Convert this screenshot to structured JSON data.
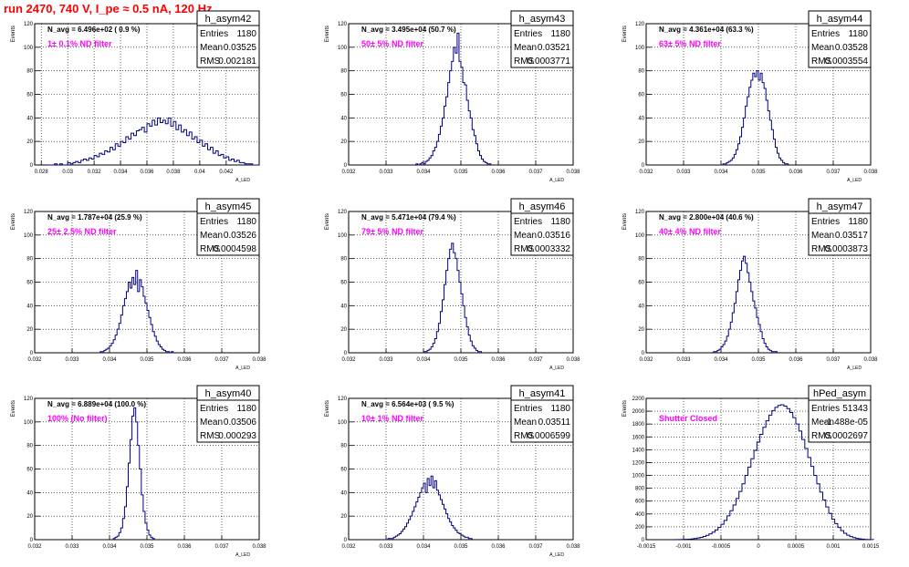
{
  "page": {
    "run_title": "run 2470,   740 V, I_pe ≈ 0.5 nA, 120 Hz",
    "colors": {
      "title": "#ff0000",
      "histogram": "#000080",
      "annotation": "#ff00ff",
      "grid": "#000000"
    }
  },
  "stats_labels": {
    "entries": "Entries",
    "mean": "Mean",
    "rms": "RMS"
  },
  "chart_data": [
    {
      "type": "histogram",
      "name": "h_asym42",
      "entries": "1180",
      "mean": "0.03525",
      "rms": "0.002181",
      "navg_text": "N_avg = 6.496e+02 ( 0.9 %)",
      "filter_text": "1± 0.1% ND filter",
      "ylabel": "Events",
      "xlabel": "A_LED",
      "xlim": [
        0.0275,
        0.0445
      ],
      "ylim": [
        0,
        120
      ],
      "xticks": [
        0.028,
        0.03,
        0.032,
        0.034,
        0.036,
        0.038,
        0.04,
        0.042
      ],
      "xtick_labels": [
        "0.028",
        "0.03",
        "0.032",
        "0.034",
        "0.036",
        "0.038",
        "0.04",
        "0.042"
      ],
      "yticks": [
        0,
        20,
        40,
        60,
        80,
        100,
        120
      ],
      "ytick_labels": [
        "0",
        "20",
        "40",
        "60",
        "80",
        "100",
        "120"
      ],
      "bins": {
        "start": 0.0284,
        "width": 0.0002,
        "values": [
          0,
          0,
          0,
          1,
          0,
          1,
          0,
          0,
          2,
          1,
          2,
          3,
          2,
          4,
          5,
          4,
          6,
          5,
          8,
          7,
          10,
          9,
          12,
          11,
          15,
          13,
          18,
          16,
          20,
          19,
          24,
          22,
          27,
          25,
          29,
          30,
          32,
          28,
          35,
          33,
          38,
          34,
          40,
          36,
          38,
          35,
          40,
          33,
          37,
          30,
          34,
          28,
          30,
          25,
          28,
          22,
          24,
          19,
          21,
          16,
          18,
          13,
          15,
          10,
          12,
          8,
          9,
          6,
          7,
          4,
          5,
          3,
          4,
          2,
          2,
          1,
          1,
          1,
          0,
          0
        ]
      }
    },
    {
      "type": "histogram",
      "name": "h_asym43",
      "entries": "1180",
      "mean": "0.03521",
      "rms": "0.0003771",
      "navg_text": "N_avg = 3.495e+04 (50.7 %)",
      "filter_text": "50± 5% ND filter",
      "ylabel": "Events",
      "xlabel": "A_LED",
      "xlim": [
        0.032,
        0.038
      ],
      "ylim": [
        0,
        120
      ],
      "xticks": [
        0.032,
        0.033,
        0.034,
        0.035,
        0.036,
        0.037,
        0.038
      ],
      "xtick_labels": [
        "0.032",
        "0.033",
        "0.034",
        "0.035",
        "0.036",
        "0.037",
        "0.038"
      ],
      "yticks": [
        0,
        20,
        40,
        60,
        80,
        100,
        120
      ],
      "ytick_labels": [
        "0",
        "20",
        "40",
        "60",
        "80",
        "100",
        "120"
      ],
      "bins": {
        "start": 0.0338,
        "width": 5e-05,
        "values": [
          1,
          0,
          1,
          2,
          1,
          3,
          4,
          6,
          8,
          12,
          15,
          20,
          26,
          33,
          40,
          50,
          58,
          70,
          80,
          88,
          100,
          95,
          112,
          88,
          83,
          70,
          68,
          55,
          46,
          40,
          30,
          25,
          18,
          12,
          8,
          5,
          3,
          2,
          1,
          1
        ]
      }
    },
    {
      "type": "histogram",
      "name": "h_asym44",
      "entries": "1180",
      "mean": "0.03528",
      "rms": "0.0003554",
      "navg_text": "N_avg = 4.361e+04 (63.3 %)",
      "filter_text": "63± 5% ND filter",
      "ylabel": "Events",
      "xlabel": "A_LED",
      "xlim": [
        0.032,
        0.038
      ],
      "ylim": [
        0,
        120
      ],
      "xticks": [
        0.032,
        0.033,
        0.034,
        0.035,
        0.036,
        0.037,
        0.038
      ],
      "xtick_labels": [
        "0.032",
        "0.033",
        "0.034",
        "0.035",
        "0.036",
        "0.037",
        "0.038"
      ],
      "yticks": [
        0,
        20,
        40,
        60,
        80,
        100,
        120
      ],
      "ytick_labels": [
        "0",
        "20",
        "40",
        "60",
        "80",
        "100",
        "120"
      ],
      "bins": {
        "start": 0.034,
        "width": 5e-05,
        "values": [
          0,
          1,
          1,
          2,
          3,
          4,
          6,
          9,
          13,
          18,
          24,
          32,
          40,
          50,
          58,
          66,
          72,
          78,
          75,
          80,
          72,
          78,
          70,
          65,
          55,
          46,
          38,
          30,
          22,
          15,
          10,
          6,
          4,
          2,
          1,
          1
        ]
      }
    },
    {
      "type": "histogram",
      "name": "h_asym45",
      "entries": "1180",
      "mean": "0.03526",
      "rms": "0.0004598",
      "navg_text": "N_avg = 1.787e+04 (25.9 %)",
      "filter_text": "25± 2.5% ND filter",
      "ylabel": "Events",
      "xlabel": "A_LED",
      "xlim": [
        0.032,
        0.038
      ],
      "ylim": [
        0,
        120
      ],
      "xticks": [
        0.032,
        0.033,
        0.034,
        0.035,
        0.036,
        0.037,
        0.038
      ],
      "xtick_labels": [
        "0.032",
        "0.033",
        "0.034",
        "0.035",
        "0.036",
        "0.037",
        "0.038"
      ],
      "yticks": [
        0,
        20,
        40,
        60,
        80,
        100,
        120
      ],
      "ytick_labels": [
        "0",
        "20",
        "40",
        "60",
        "80",
        "100",
        "120"
      ],
      "bins": {
        "start": 0.0337,
        "width": 5e-05,
        "values": [
          0,
          1,
          1,
          2,
          3,
          4,
          6,
          8,
          11,
          15,
          20,
          25,
          32,
          40,
          46,
          52,
          60,
          55,
          64,
          58,
          70,
          52,
          62,
          56,
          48,
          42,
          36,
          30,
          24,
          18,
          14,
          10,
          7,
          5,
          3,
          2,
          1,
          1,
          0,
          1
        ]
      }
    },
    {
      "type": "histogram",
      "name": "h_asym46",
      "entries": "1180",
      "mean": "0.03516",
      "rms": "0.0003332",
      "navg_text": "N_avg = 5.471e+04 (79.4 %)",
      "filter_text": "79± 5% ND filter",
      "ylabel": "Events",
      "xlabel": "A_LED",
      "xlim": [
        0.032,
        0.038
      ],
      "ylim": [
        0,
        120
      ],
      "xticks": [
        0.032,
        0.033,
        0.034,
        0.035,
        0.036,
        0.037,
        0.038
      ],
      "xtick_labels": [
        "0.032",
        "0.033",
        "0.034",
        "0.035",
        "0.036",
        "0.037",
        "0.038"
      ],
      "yticks": [
        0,
        20,
        40,
        60,
        80,
        100,
        120
      ],
      "ytick_labels": [
        "0",
        "20",
        "40",
        "60",
        "80",
        "100",
        "120"
      ],
      "bins": {
        "start": 0.034,
        "width": 5e-05,
        "values": [
          1,
          1,
          2,
          3,
          5,
          8,
          12,
          18,
          25,
          35,
          45,
          58,
          70,
          80,
          88,
          93,
          85,
          80,
          70,
          60,
          50,
          40,
          30,
          22,
          15,
          10,
          6,
          4,
          2,
          1,
          1
        ]
      }
    },
    {
      "type": "histogram",
      "name": "h_asym47",
      "entries": "1180",
      "mean": "0.03517",
      "rms": "0.0003873",
      "navg_text": "N_avg = 2.800e+04 (40.6 %)",
      "filter_text": "40± 4% ND filter",
      "ylabel": "Events",
      "xlabel": "A_LED",
      "xlim": [
        0.032,
        0.038
      ],
      "ylim": [
        0,
        120
      ],
      "xticks": [
        0.032,
        0.033,
        0.034,
        0.035,
        0.036,
        0.037,
        0.038
      ],
      "xtick_labels": [
        "0.032",
        "0.033",
        "0.034",
        "0.035",
        "0.036",
        "0.037",
        "0.038"
      ],
      "yticks": [
        0,
        20,
        40,
        60,
        80,
        100,
        120
      ],
      "ytick_labels": [
        "0",
        "20",
        "40",
        "60",
        "80",
        "100",
        "120"
      ],
      "bins": {
        "start": 0.0338,
        "width": 5e-05,
        "values": [
          1,
          1,
          2,
          3,
          5,
          7,
          10,
          14,
          20,
          26,
          34,
          42,
          52,
          62,
          70,
          78,
          82,
          76,
          68,
          60,
          52,
          44,
          38,
          30,
          24,
          18,
          12,
          8,
          5,
          3,
          2,
          1,
          1,
          1
        ]
      }
    },
    {
      "type": "histogram",
      "name": "h_asym40",
      "entries": "1180",
      "mean": "0.03506",
      "rms": "0.000293",
      "navg_text": "N_avg = 6.889e+04 (100.0 %)",
      "filter_text": "100% (No filter)",
      "ylabel": "Events",
      "xlabel": "A_LED",
      "xlim": [
        0.032,
        0.038
      ],
      "ylim": [
        0,
        120
      ],
      "xticks": [
        0.032,
        0.033,
        0.034,
        0.035,
        0.036,
        0.037,
        0.038
      ],
      "xtick_labels": [
        "0.032",
        "0.033",
        "0.034",
        "0.035",
        "0.036",
        "0.037",
        "0.038"
      ],
      "yticks": [
        0,
        20,
        40,
        60,
        80,
        100,
        120
      ],
      "ytick_labels": [
        "0",
        "20",
        "40",
        "60",
        "80",
        "100",
        "120"
      ],
      "bins": {
        "start": 0.0341,
        "width": 5e-05,
        "values": [
          1,
          2,
          3,
          6,
          10,
          18,
          28,
          45,
          65,
          85,
          105,
          112,
          100,
          80,
          60,
          38,
          24,
          14,
          8,
          4,
          2,
          1
        ]
      }
    },
    {
      "type": "histogram",
      "name": "h_asym41",
      "entries": "1180",
      "mean": "0.03511",
      "rms": "0.0006599",
      "navg_text": "N_avg = 6.564e+03 ( 9.5 %)",
      "filter_text": "10± 1% ND filter",
      "ylabel": "Events",
      "xlabel": "A_LED",
      "xlim": [
        0.032,
        0.038
      ],
      "ylim": [
        0,
        120
      ],
      "xticks": [
        0.032,
        0.033,
        0.034,
        0.035,
        0.036,
        0.037,
        0.038
      ],
      "xtick_labels": [
        "0.032",
        "0.033",
        "0.034",
        "0.035",
        "0.036",
        "0.037",
        "0.038"
      ],
      "yticks": [
        0,
        20,
        40,
        60,
        80,
        100,
        120
      ],
      "ytick_labels": [
        "0",
        "20",
        "40",
        "60",
        "80",
        "100",
        "120"
      ],
      "bins": {
        "start": 0.033,
        "width": 5e-05,
        "values": [
          0,
          1,
          1,
          1,
          2,
          3,
          4,
          5,
          7,
          9,
          11,
          14,
          17,
          20,
          24,
          28,
          32,
          36,
          40,
          44,
          48,
          40,
          52,
          46,
          54,
          44,
          50,
          42,
          38,
          34,
          30,
          26,
          22,
          18,
          15,
          12,
          10,
          8,
          6,
          5,
          4,
          3,
          2,
          2,
          1,
          1
        ]
      }
    },
    {
      "type": "histogram",
      "name": "hPed_asym",
      "entries": "51343",
      "mean": "-1.488e-05",
      "rms": "0.0002697",
      "navg_text": "",
      "filter_text": "Shutter Closed",
      "ylabel": "Events",
      "xlabel": "",
      "xlim": [
        -0.0015,
        0.0015
      ],
      "ylim": [
        0,
        2200
      ],
      "xticks": [
        -0.0015,
        -0.001,
        -0.0005,
        0,
        0.0005,
        0.001,
        0.0015
      ],
      "xtick_labels": [
        "-0.0015",
        "-0.001",
        "-0.0005",
        "0",
        "0.0005",
        "0.001",
        "0.0015"
      ],
      "yticks": [
        0,
        200,
        400,
        600,
        800,
        1000,
        1200,
        1400,
        1600,
        1800,
        2000,
        2200
      ],
      "ytick_labels": [
        "0",
        "200",
        "400",
        "600",
        "800",
        "1000",
        "1200",
        "1400",
        "1600",
        "1800",
        "2000",
        "2200"
      ],
      "bins": {
        "start": -0.0011,
        "width": 4e-05,
        "values": [
          1,
          2,
          3,
          5,
          8,
          12,
          18,
          26,
          36,
          50,
          68,
          90,
          118,
          150,
          190,
          240,
          300,
          370,
          450,
          540,
          640,
          750,
          870,
          1000,
          1130,
          1260,
          1390,
          1520,
          1640,
          1750,
          1850,
          1940,
          2010,
          2060,
          2090,
          2100,
          2080,
          2040,
          1980,
          1900,
          1800,
          1690,
          1560,
          1420,
          1280,
          1140,
          1000,
          870,
          740,
          620,
          510,
          410,
          320,
          250,
          190,
          140,
          100,
          70,
          48,
          32,
          20,
          12,
          7,
          4,
          2,
          1
        ]
      }
    }
  ]
}
